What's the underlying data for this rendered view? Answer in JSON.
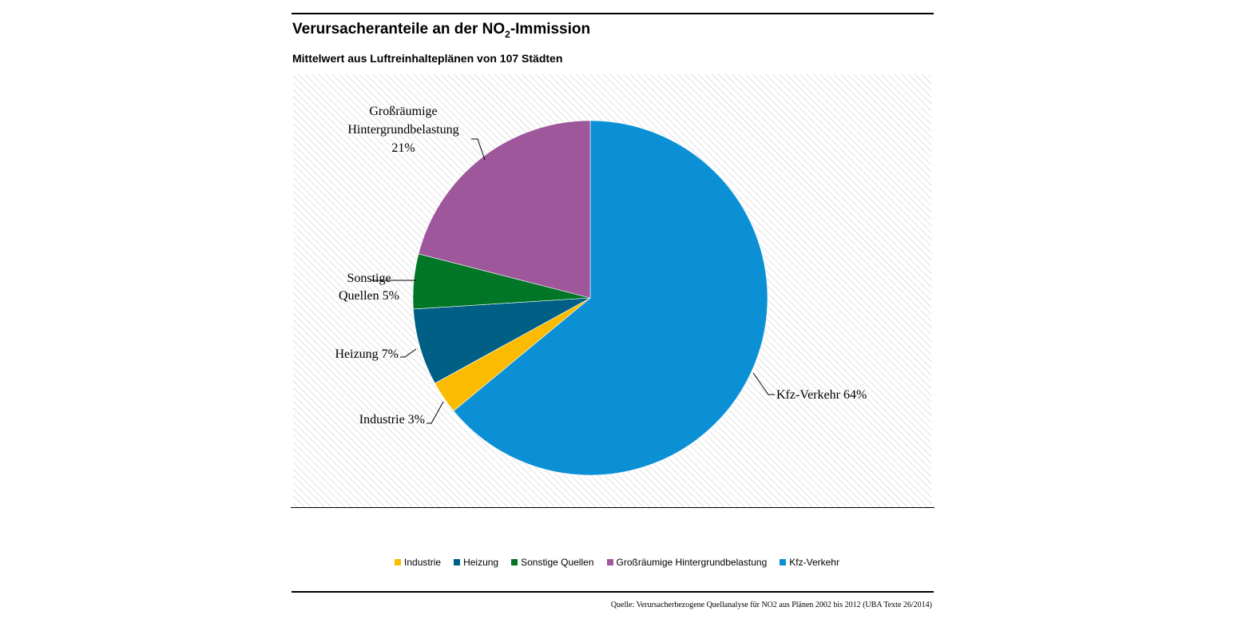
{
  "chart_data": {
    "type": "pie",
    "title_main": "Verursacheranteile an der NO",
    "title_sub": "2",
    "title_tail": "-Immission",
    "subtitle": "Mittelwert aus Luftreinhalteplänen von 107 Städten",
    "slices": [
      {
        "name": "Industrie",
        "value": 3,
        "label": "Industrie 3%",
        "color": "#fbbb00"
      },
      {
        "name": "Heizung",
        "value": 7,
        "label": "Heizung 7%",
        "color": "#005f85"
      },
      {
        "name": "Sonstige Quellen",
        "value": 5,
        "label_lines": [
          "Sonstige",
          "Quellen 5%"
        ],
        "color": "#007626"
      },
      {
        "name": "Großräumige Hintergrundbelastung",
        "value": 21,
        "label_lines": [
          "Großräumige",
          "Hintergrundbelastung",
          "21%"
        ],
        "color": "#9d579a"
      },
      {
        "name": "Kfz-Verkehr",
        "value": 64,
        "label": "Kfz-Verkehr 64%",
        "color": "#0b90d5"
      }
    ],
    "legend_position": "bottom",
    "source": "Quelle: Verursacherbezogene Quellanalyse für NO2 aus Plänen 2002 bis 2012 (UBA Texte 26/2014)"
  }
}
